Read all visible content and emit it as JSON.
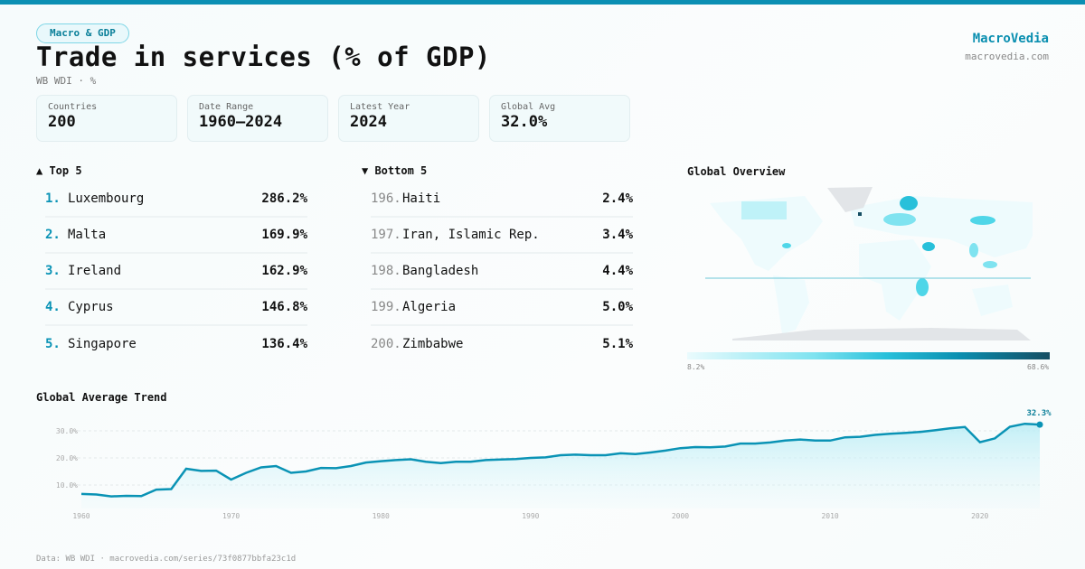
{
  "header": {
    "category": "Macro & GDP",
    "title": "Trade in services (% of GDP)",
    "subtitle": "WB WDI · %",
    "brand": "MacroVedia",
    "brand_url": "macrovedia.com"
  },
  "stats": [
    {
      "label": "Countries",
      "value": "200"
    },
    {
      "label": "Date Range",
      "value": "1960–2024"
    },
    {
      "label": "Latest Year",
      "value": "2024"
    },
    {
      "label": "Global Avg",
      "value": "32.0%"
    }
  ],
  "top5": {
    "title": "▲ Top 5",
    "items": [
      {
        "rank": "1.",
        "name": "Luxembourg",
        "value": "286.2%"
      },
      {
        "rank": "2.",
        "name": "Malta",
        "value": "169.9%"
      },
      {
        "rank": "3.",
        "name": "Ireland",
        "value": "162.9%"
      },
      {
        "rank": "4.",
        "name": "Cyprus",
        "value": "146.8%"
      },
      {
        "rank": "5.",
        "name": "Singapore",
        "value": "136.4%"
      }
    ]
  },
  "bottom5": {
    "title": "▼ Bottom 5",
    "items": [
      {
        "rank": "196.",
        "name": "Haiti",
        "value": "2.4%"
      },
      {
        "rank": "197.",
        "name": "Iran, Islamic Rep.",
        "value": "3.4%"
      },
      {
        "rank": "198.",
        "name": "Bangladesh",
        "value": "4.4%"
      },
      {
        "rank": "199.",
        "name": "Algeria",
        "value": "5.0%"
      },
      {
        "rank": "200.",
        "name": "Zimbabwe",
        "value": "5.1%"
      }
    ]
  },
  "map": {
    "title": "Global Overview",
    "legend_min": "8.2%",
    "legend_max": "68.6%",
    "colors": [
      "#eafbfd",
      "#7fe3f0",
      "#28c0da",
      "#0a8fb0",
      "#164e63"
    ]
  },
  "chart_data": {
    "type": "area",
    "title": "Global Average Trend",
    "x": [
      1960,
      1961,
      1962,
      1963,
      1964,
      1965,
      1966,
      1967,
      1968,
      1969,
      1970,
      1971,
      1972,
      1973,
      1974,
      1975,
      1976,
      1977,
      1978,
      1979,
      1980,
      1981,
      1982,
      1983,
      1984,
      1985,
      1986,
      1987,
      1988,
      1989,
      1990,
      1991,
      1992,
      1993,
      1994,
      1995,
      1996,
      1997,
      1998,
      1999,
      2000,
      2001,
      2002,
      2003,
      2004,
      2005,
      2006,
      2007,
      2008,
      2009,
      2010,
      2011,
      2012,
      2013,
      2014,
      2015,
      2016,
      2017,
      2018,
      2019,
      2020,
      2021,
      2022,
      2023,
      2024
    ],
    "y": [
      6.7,
      6.5,
      5.8,
      6.0,
      5.9,
      8.3,
      8.5,
      16.0,
      15.2,
      15.3,
      12.0,
      14.5,
      16.5,
      17.0,
      14.5,
      15.0,
      16.3,
      16.2,
      17.0,
      18.3,
      18.8,
      19.2,
      19.5,
      18.6,
      18.1,
      18.6,
      18.6,
      19.2,
      19.4,
      19.6,
      20.0,
      20.2,
      21.0,
      21.2,
      21.0,
      21.0,
      21.7,
      21.4,
      22.0,
      22.7,
      23.6,
      24.0,
      23.9,
      24.2,
      25.3,
      25.3,
      25.7,
      26.4,
      26.8,
      26.4,
      26.4,
      27.6,
      27.8,
      28.5,
      28.9,
      29.2,
      29.6,
      30.2,
      30.9,
      31.4,
      25.8,
      27.2,
      31.5,
      32.6,
      32.3
    ],
    "x_ticks": [
      "1960",
      "1970",
      "1980",
      "1990",
      "2000",
      "2010",
      "2020"
    ],
    "y_ticks": [
      "10.0%",
      "20.0%",
      "30.0%"
    ],
    "ylim": [
      0,
      33
    ],
    "last_label": "32.3%",
    "grid": true,
    "color": "#0a93b5"
  },
  "footer": "Data: WB WDI · macrovedia.com/series/73f0877bbfa23c1d"
}
